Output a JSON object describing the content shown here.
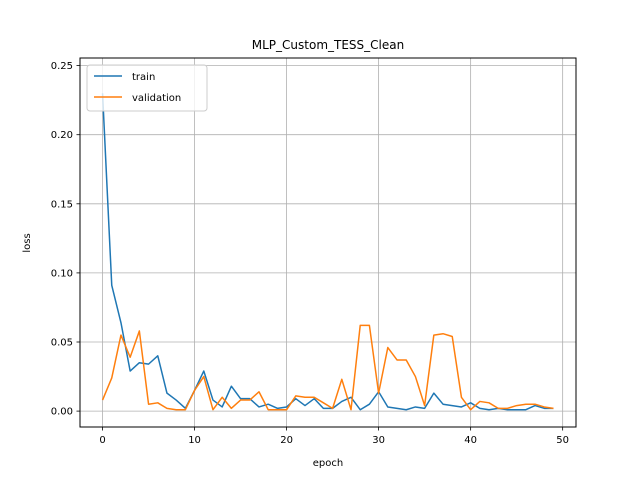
{
  "chart_data": {
    "type": "line",
    "title": "MLP_Custom_TESS_Clean",
    "xlabel": "epoch",
    "ylabel": "loss",
    "xlim": [
      -2.45,
      51.45
    ],
    "ylim": [
      -0.0115,
      0.2555
    ],
    "grid": true,
    "legend_position": "top-left",
    "x_ticks": [
      "0",
      "10",
      "20",
      "30",
      "40",
      "50"
    ],
    "y_ticks": [
      "0.00",
      "0.05",
      "0.10",
      "0.15",
      "0.20",
      "0.25"
    ],
    "x": [
      0,
      1,
      2,
      3,
      4,
      5,
      6,
      7,
      8,
      9,
      10,
      11,
      12,
      13,
      14,
      15,
      16,
      17,
      18,
      19,
      20,
      21,
      22,
      23,
      24,
      25,
      26,
      27,
      28,
      29,
      30,
      31,
      32,
      33,
      34,
      35,
      36,
      37,
      38,
      39,
      40,
      41,
      42,
      43,
      44,
      45,
      46,
      47,
      48,
      49
    ],
    "series": [
      {
        "name": "train",
        "color": "#1f77b4",
        "values": [
          0.23,
          0.091,
          0.064,
          0.029,
          0.035,
          0.034,
          0.04,
          0.013,
          0.008,
          0.002,
          0.015,
          0.029,
          0.008,
          0.003,
          0.018,
          0.009,
          0.009,
          0.003,
          0.005,
          0.002,
          0.003,
          0.009,
          0.004,
          0.009,
          0.002,
          0.002,
          0.007,
          0.01,
          0.001,
          0.005,
          0.014,
          0.003,
          0.002,
          0.001,
          0.003,
          0.002,
          0.013,
          0.005,
          0.004,
          0.003,
          0.006,
          0.002,
          0.001,
          0.002,
          0.001,
          0.001,
          0.001,
          0.004,
          0.002,
          0.002
        ]
      },
      {
        "name": "validation",
        "color": "#ff7f0e",
        "values": [
          0.008,
          0.024,
          0.055,
          0.039,
          0.058,
          0.005,
          0.006,
          0.002,
          0.001,
          0.001,
          0.015,
          0.025,
          0.001,
          0.01,
          0.002,
          0.008,
          0.008,
          0.014,
          0.001,
          0.001,
          0.001,
          0.011,
          0.01,
          0.01,
          0.006,
          0.002,
          0.023,
          0.001,
          0.062,
          0.062,
          0.013,
          0.046,
          0.037,
          0.037,
          0.025,
          0.004,
          0.055,
          0.056,
          0.054,
          0.01,
          0.001,
          0.007,
          0.006,
          0.002,
          0.002,
          0.004,
          0.005,
          0.005,
          0.003,
          0.002
        ]
      }
    ]
  }
}
